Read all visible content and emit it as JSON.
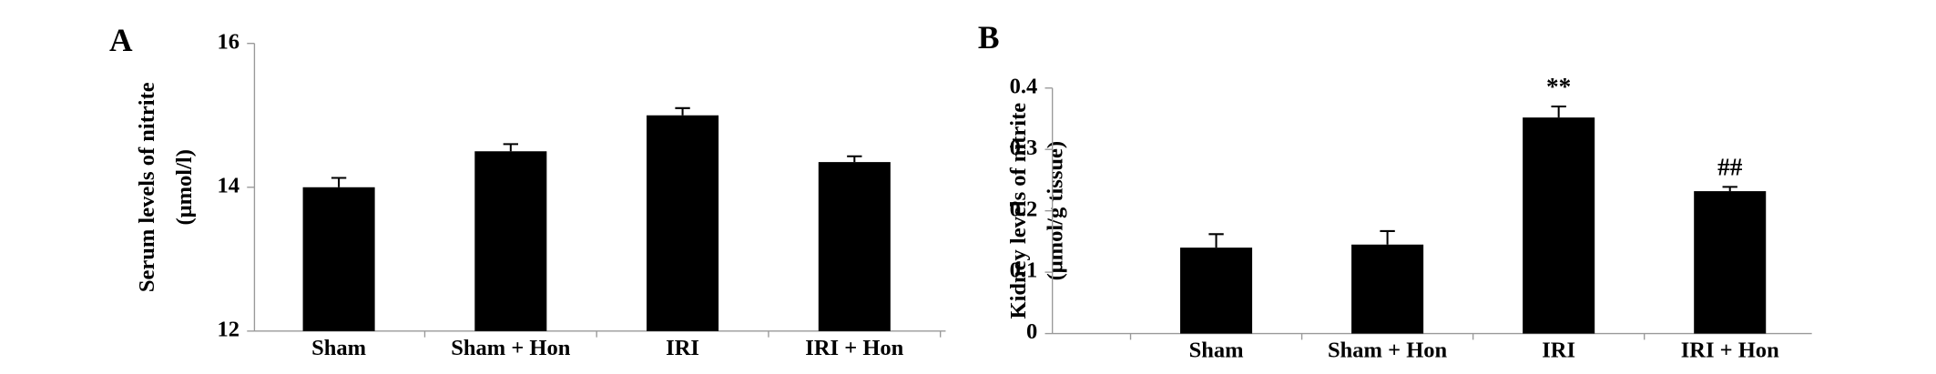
{
  "chart_data": [
    {
      "type": "bar",
      "panel": "A",
      "ylabel": [
        "Serum levels of nitrite",
        "(μmol/l)"
      ],
      "categories": [
        "Sham",
        "Sham + Hon",
        "IRI",
        "IRI + Hon"
      ],
      "values": [
        14.0,
        14.5,
        15.0,
        14.35
      ],
      "errors": [
        0.13,
        0.1,
        0.1,
        0.08
      ],
      "color": "#000000",
      "ylim": [
        12,
        16
      ],
      "yticks": [
        12,
        14,
        16
      ]
    },
    {
      "type": "bar",
      "panel": "B",
      "ylabel": [
        "Kidney levels of nitrite",
        "(μmol/g tissue)"
      ],
      "categories": [
        "Sham",
        "Sham + Hon",
        "IRI",
        "IRI + Hon"
      ],
      "values": [
        0.14,
        0.145,
        0.352,
        0.232
      ],
      "errors": [
        0.022,
        0.022,
        0.018,
        0.007
      ],
      "annotations": [
        {
          "category": 2,
          "text": "**"
        },
        {
          "category": 3,
          "text": "##"
        }
      ],
      "color": "#000000",
      "ylim": [
        0,
        0.4
      ],
      "yticks": [
        0,
        0.1,
        0.2,
        0.3,
        0.4
      ]
    }
  ]
}
